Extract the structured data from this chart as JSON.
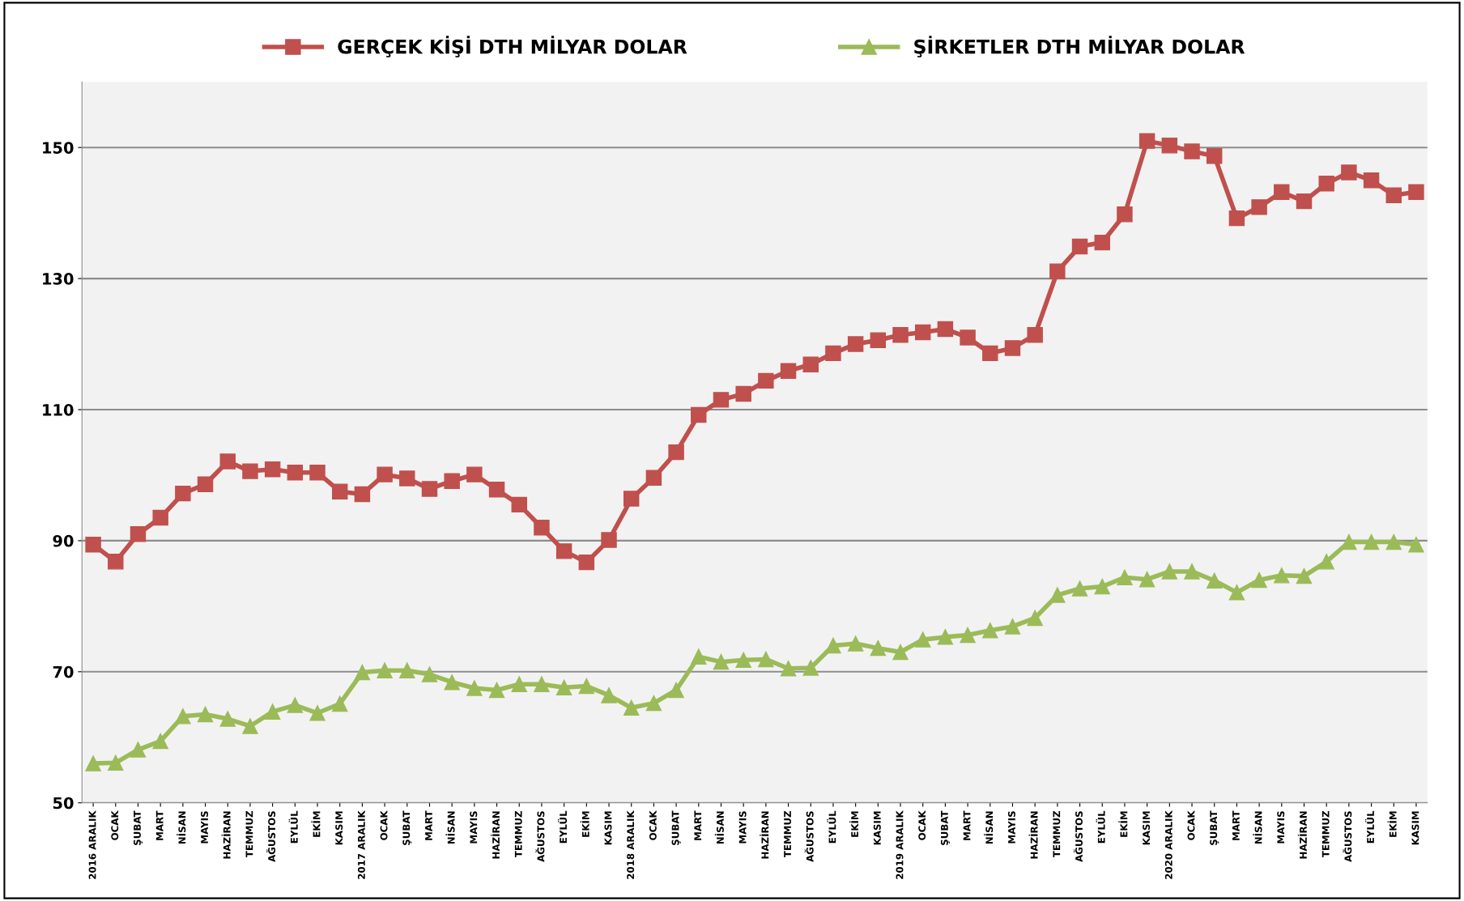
{
  "chart_data": {
    "type": "line",
    "categories": [
      "2016 ARALIK",
      "OCAK",
      "ŞUBAT",
      "MART",
      "NİSAN",
      "MAYIS",
      "HAZİRAN",
      "TEMMUZ",
      "AĞUSTOS",
      "EYLÜL",
      "EKİM",
      "KASIM",
      "2017 ARALIK",
      "OCAK",
      "ŞUBAT",
      "MART",
      "NİSAN",
      "MAYIS",
      "HAZİRAN",
      "TEMMUZ",
      "AĞUSTOS",
      "EYLÜL",
      "EKİM",
      "KASIM",
      "2018 ARALIK",
      "OCAK",
      "ŞUBAT",
      "MART",
      "NİSAN",
      "MAYIS",
      "HAZİRAN",
      "TEMMUZ",
      "AĞUSTOS",
      "EYLÜL",
      "EKİM",
      "KASIM",
      "2019 ARALIK",
      "OCAK",
      "ŞUBAT",
      "MART",
      "NİSAN",
      "MAYIS",
      "HAZİRAN",
      "TEMMUZ",
      "AĞUSTOS",
      "EYLÜL",
      "EKİM",
      "KASIM",
      "2020 ARALIK",
      "OCAK",
      "ŞUBAT",
      "MART",
      "NİSAN",
      "MAYIS",
      "HAZİRAN",
      "TEMMUZ",
      "AĞUSTOS",
      "EYLÜL",
      "EKİM",
      "KASIM"
    ],
    "series": [
      {
        "name": "GERÇEK KİŞİ DTH MİLYAR DOLAR",
        "color": "#c0504d",
        "marker": "square",
        "values": [
          89.4,
          86.8,
          91.0,
          93.5,
          97.2,
          98.6,
          102.1,
          100.6,
          100.9,
          100.4,
          100.4,
          97.5,
          97.1,
          100.1,
          99.5,
          97.9,
          99.1,
          100.1,
          97.8,
          95.5,
          92.0,
          88.4,
          86.7,
          90.1,
          96.4,
          99.6,
          103.5,
          109.2,
          111.5,
          112.4,
          114.4,
          115.9,
          116.9,
          118.6,
          120.0,
          120.6,
          121.4,
          121.8,
          122.3,
          121.0,
          118.6,
          119.4,
          121.4,
          131.1,
          134.9,
          135.5,
          139.8,
          151.0,
          150.3,
          149.4,
          148.7,
          139.2,
          140.9,
          143.2,
          141.8,
          144.5,
          146.2,
          145.0,
          142.7,
          143.2
        ]
      },
      {
        "name": "ŞİRKETLER DTH MİLYAR DOLAR",
        "color": "#9bbb59",
        "marker": "triangle",
        "values": [
          56.0,
          56.1,
          58.1,
          59.4,
          63.2,
          63.5,
          62.8,
          61.7,
          63.9,
          64.9,
          63.7,
          65.1,
          69.9,
          70.2,
          70.2,
          69.6,
          68.4,
          67.5,
          67.2,
          68.1,
          68.1,
          67.6,
          67.8,
          66.4,
          64.5,
          65.2,
          67.2,
          72.3,
          71.5,
          71.8,
          71.9,
          70.5,
          70.6,
          74.0,
          74.3,
          73.6,
          73.0,
          74.9,
          75.3,
          75.6,
          76.3,
          76.9,
          78.2,
          81.7,
          82.7,
          83.0,
          84.4,
          84.1,
          85.3,
          85.3,
          83.9,
          82.1,
          84.0,
          84.7,
          84.6,
          86.8,
          89.8,
          89.8,
          89.8,
          89.4
        ]
      }
    ],
    "ylim": [
      50,
      160
    ],
    "yticks": [
      50,
      70,
      90,
      110,
      130,
      150
    ],
    "grid": "y",
    "legend": "top",
    "line_style": "solid"
  }
}
